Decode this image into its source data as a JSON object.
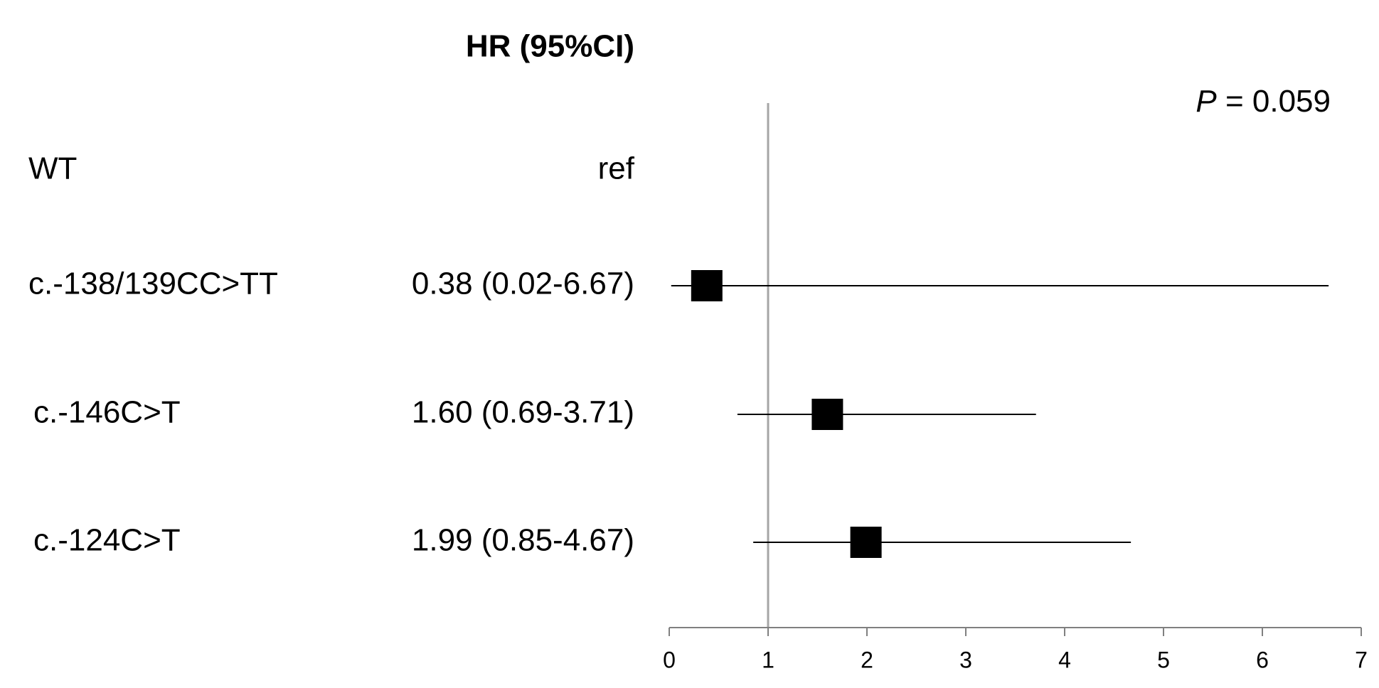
{
  "chart_data": {
    "type": "forest",
    "column_header": "HR (95%CI)",
    "categories": [
      "WT",
      "c.-138/139CC>TT",
      "c.-146C>T",
      "c.-124C>T"
    ],
    "hr_labels": [
      "ref",
      "0.38 (0.02-6.67)",
      "1.60 (0.69-3.71)",
      "1.99 (0.85-4.67)"
    ],
    "values": [
      null,
      0.38,
      1.6,
      1.99
    ],
    "lower": [
      null,
      0.02,
      0.69,
      0.85
    ],
    "upper": [
      null,
      6.67,
      3.71,
      4.67
    ],
    "reference_line": 1,
    "p_symbol": "P",
    "p_value": "= 0.059",
    "color": "#000000",
    "xlim": [
      0,
      7
    ],
    "xticks": [
      0,
      1,
      2,
      3,
      4,
      5,
      6,
      7
    ]
  }
}
